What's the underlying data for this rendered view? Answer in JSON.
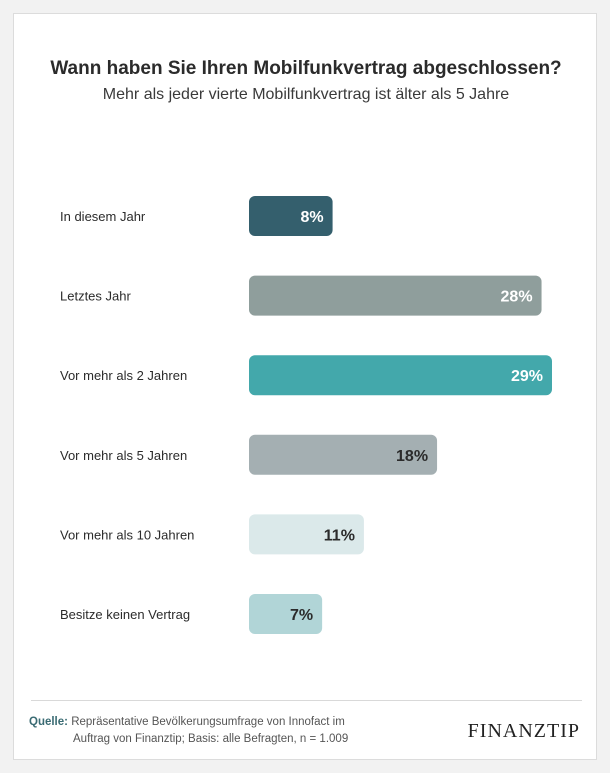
{
  "header": {
    "title": "Wann haben Sie Ihren Mobilfunkvertrag abgeschlossen?",
    "subtitle": "Mehr als jeder vierte Mobilfunkvertrag ist älter als 5 Jahre"
  },
  "chart_data": {
    "type": "bar",
    "orientation": "horizontal",
    "title": "Wann haben Sie Ihren Mobilfunkvertrag abgeschlossen?",
    "subtitle": "Mehr als jeder vierte Mobilfunkvertrag ist älter als 5 Jahre",
    "categories": [
      "In diesem Jahr",
      "Letztes Jahr",
      "Vor mehr als 2 Jahren",
      "Vor mehr als 5 Jahren",
      "Vor mehr als 10 Jahren",
      "Besitze keinen Vertrag"
    ],
    "values": [
      8,
      28,
      29,
      18,
      11,
      7
    ],
    "value_labels": [
      "8%",
      "28%",
      "29%",
      "18%",
      "11%",
      "7%"
    ],
    "unit": "%",
    "xlim": [
      0,
      29
    ],
    "grid": false,
    "colors": [
      "#345f6d",
      "#8f9e9c",
      "#43a8ab",
      "#a4afb2",
      "#dbe9ea",
      "#b1d5d7"
    ],
    "label_colors": [
      "#ffffff",
      "#ffffff",
      "#ffffff",
      "#2b2b2b",
      "#2b2b2b",
      "#2b2b2b"
    ]
  },
  "footer": {
    "source_label": "Quelle:",
    "source_line1": "Repräsentative Bevölkerungsumfrage von Innofact im",
    "source_line2": "Auftrag von Finanztip; Basis: alle Befragten, n = 1.009",
    "logo": "FINANZTIP"
  }
}
